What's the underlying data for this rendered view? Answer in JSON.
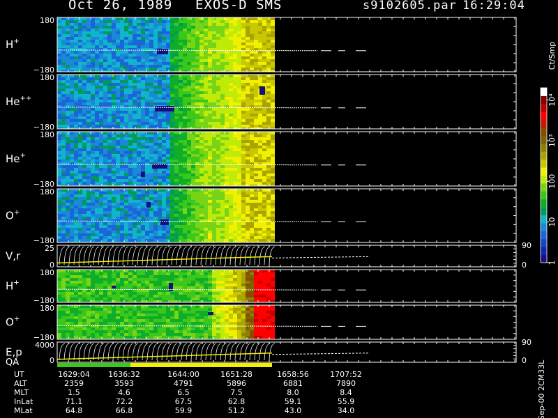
{
  "header": {
    "date": "Oct 26, 1989",
    "instrument": "EXOS-D SMS",
    "file": "s9102605.par",
    "time": "16:29:04"
  },
  "footer": {
    "side_label": "Sep-00 2CM33L"
  },
  "colorbar": {
    "unit": "Ct/Smp",
    "ticks": [
      {
        "label": "1",
        "value": 1
      },
      {
        "label": "10",
        "value": 10
      },
      {
        "label": "100",
        "value": 100
      },
      {
        "label": "10³",
        "value": 1000
      },
      {
        "label": "10⁴",
        "value": 10000
      }
    ],
    "colors": [
      "#1a0f80",
      "#1226a8",
      "#1546c8",
      "#1a66d8",
      "#1a8ad8",
      "#10b4cc",
      "#009a5a",
      "#0fae2a",
      "#3ac81a",
      "#78d416",
      "#c0ea08",
      "#f0f000",
      "#c8c800",
      "#aaa400",
      "#8c8200",
      "#7a6400",
      "#8c4a00",
      "#c01c00",
      "#ff0000",
      "#c00000",
      "#800000",
      "#ffffff"
    ]
  },
  "chart_data": {
    "type": "heatmap",
    "panels": [
      {
        "label": "H",
        "sup": "+",
        "yticks": [
          "180",
          "−180"
        ],
        "profile": "low_then_high"
      },
      {
        "label": "He",
        "sup": "++",
        "yticks": [
          "180",
          "−180"
        ],
        "profile": "low_then_high"
      },
      {
        "label": "He",
        "sup": "+",
        "yticks": [
          "180",
          "−180"
        ],
        "profile": "low_then_high"
      },
      {
        "label": "O",
        "sup": "+",
        "yticks": [
          "180",
          "−180"
        ],
        "profile": "low_then_high"
      },
      {
        "label": "V,r",
        "sup": "",
        "yticks": [
          "25",
          "0"
        ],
        "right_ticks": [
          "90",
          "0"
        ],
        "profile": "lines"
      },
      {
        "label": "H",
        "sup": "+",
        "yticks": [
          "180",
          "−180"
        ],
        "profile": "mid_then_red"
      },
      {
        "label": "O",
        "sup": "+",
        "yticks": [
          "180",
          "−180"
        ],
        "profile": "mid_then_red"
      },
      {
        "label": "E,p",
        "sup": "",
        "yticks": [
          "4000",
          "0"
        ],
        "right_ticks": [
          "90",
          "0"
        ],
        "profile": "lines"
      }
    ],
    "qa_label": "QA",
    "ephemeris": {
      "labels": [
        "UT",
        "ALT",
        "MLT",
        "InLat",
        "MLat"
      ],
      "columns": [
        [
          "1629:04",
          "2359",
          "1.5",
          "71.1",
          "64.8"
        ],
        [
          "1636:32",
          "3593",
          "4.6",
          "72.2",
          "66.8"
        ],
        [
          "1644:00",
          "4791",
          "6.5",
          "67.5",
          "59.9"
        ],
        [
          "1651:28",
          "5896",
          "7.5",
          "62.8",
          "51.2"
        ],
        [
          "1658:56",
          "6881",
          "8.0",
          "59.1",
          "43.0"
        ],
        [
          "1707:52",
          "7890",
          "8.4",
          "55.9",
          "34.0"
        ]
      ]
    }
  }
}
